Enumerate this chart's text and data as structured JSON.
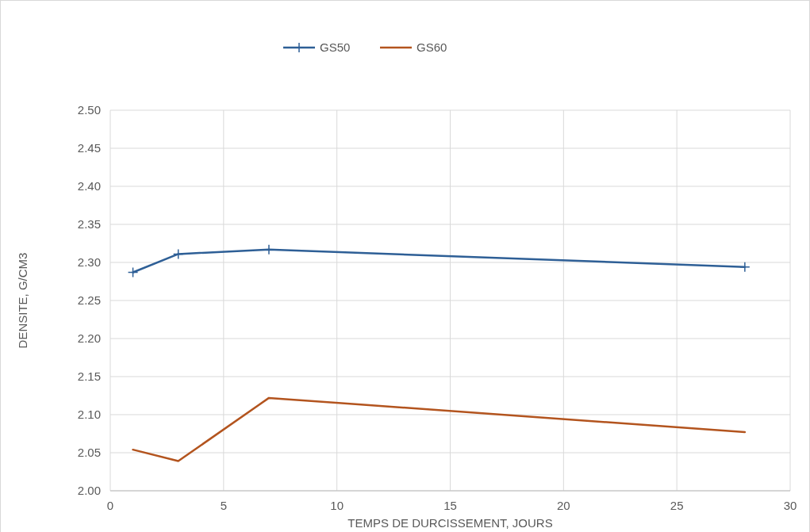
{
  "chart_data": {
    "type": "line",
    "xlabel": "TEMPS DE DURCISSEMENT, JOURS",
    "ylabel": "DENSITE, G/CM3",
    "x": [
      1,
      3,
      7,
      28
    ],
    "series": [
      {
        "name": "GS50",
        "color": "#2e5f96",
        "values": [
          2.287,
          2.311,
          2.317,
          2.294
        ],
        "marker": "cross"
      },
      {
        "name": "GS60",
        "color": "#b3541e",
        "values": [
          2.054,
          2.039,
          2.122,
          2.077
        ],
        "marker": "none"
      }
    ],
    "xlim": [
      0,
      30
    ],
    "xticks": [
      0,
      5,
      10,
      15,
      20,
      25,
      30
    ],
    "ylim": [
      2.0,
      2.5
    ],
    "yticks": [
      {
        "value": 2.0,
        "label": "2.00"
      },
      {
        "value": 2.05,
        "label": "2.05"
      },
      {
        "value": 2.1,
        "label": "2.10"
      },
      {
        "value": 2.15,
        "label": "2.15"
      },
      {
        "value": 2.2,
        "label": "2.20"
      },
      {
        "value": 2.25,
        "label": "2.25"
      },
      {
        "value": 2.3,
        "label": "2.30"
      },
      {
        "value": 2.35,
        "label": "2.35"
      },
      {
        "value": 2.4,
        "label": "2.40"
      },
      {
        "value": 2.45,
        "label": "2.45"
      },
      {
        "value": 2.5,
        "label": "2.50"
      }
    ],
    "grid": true,
    "legend": "top",
    "line_style": "solid"
  }
}
